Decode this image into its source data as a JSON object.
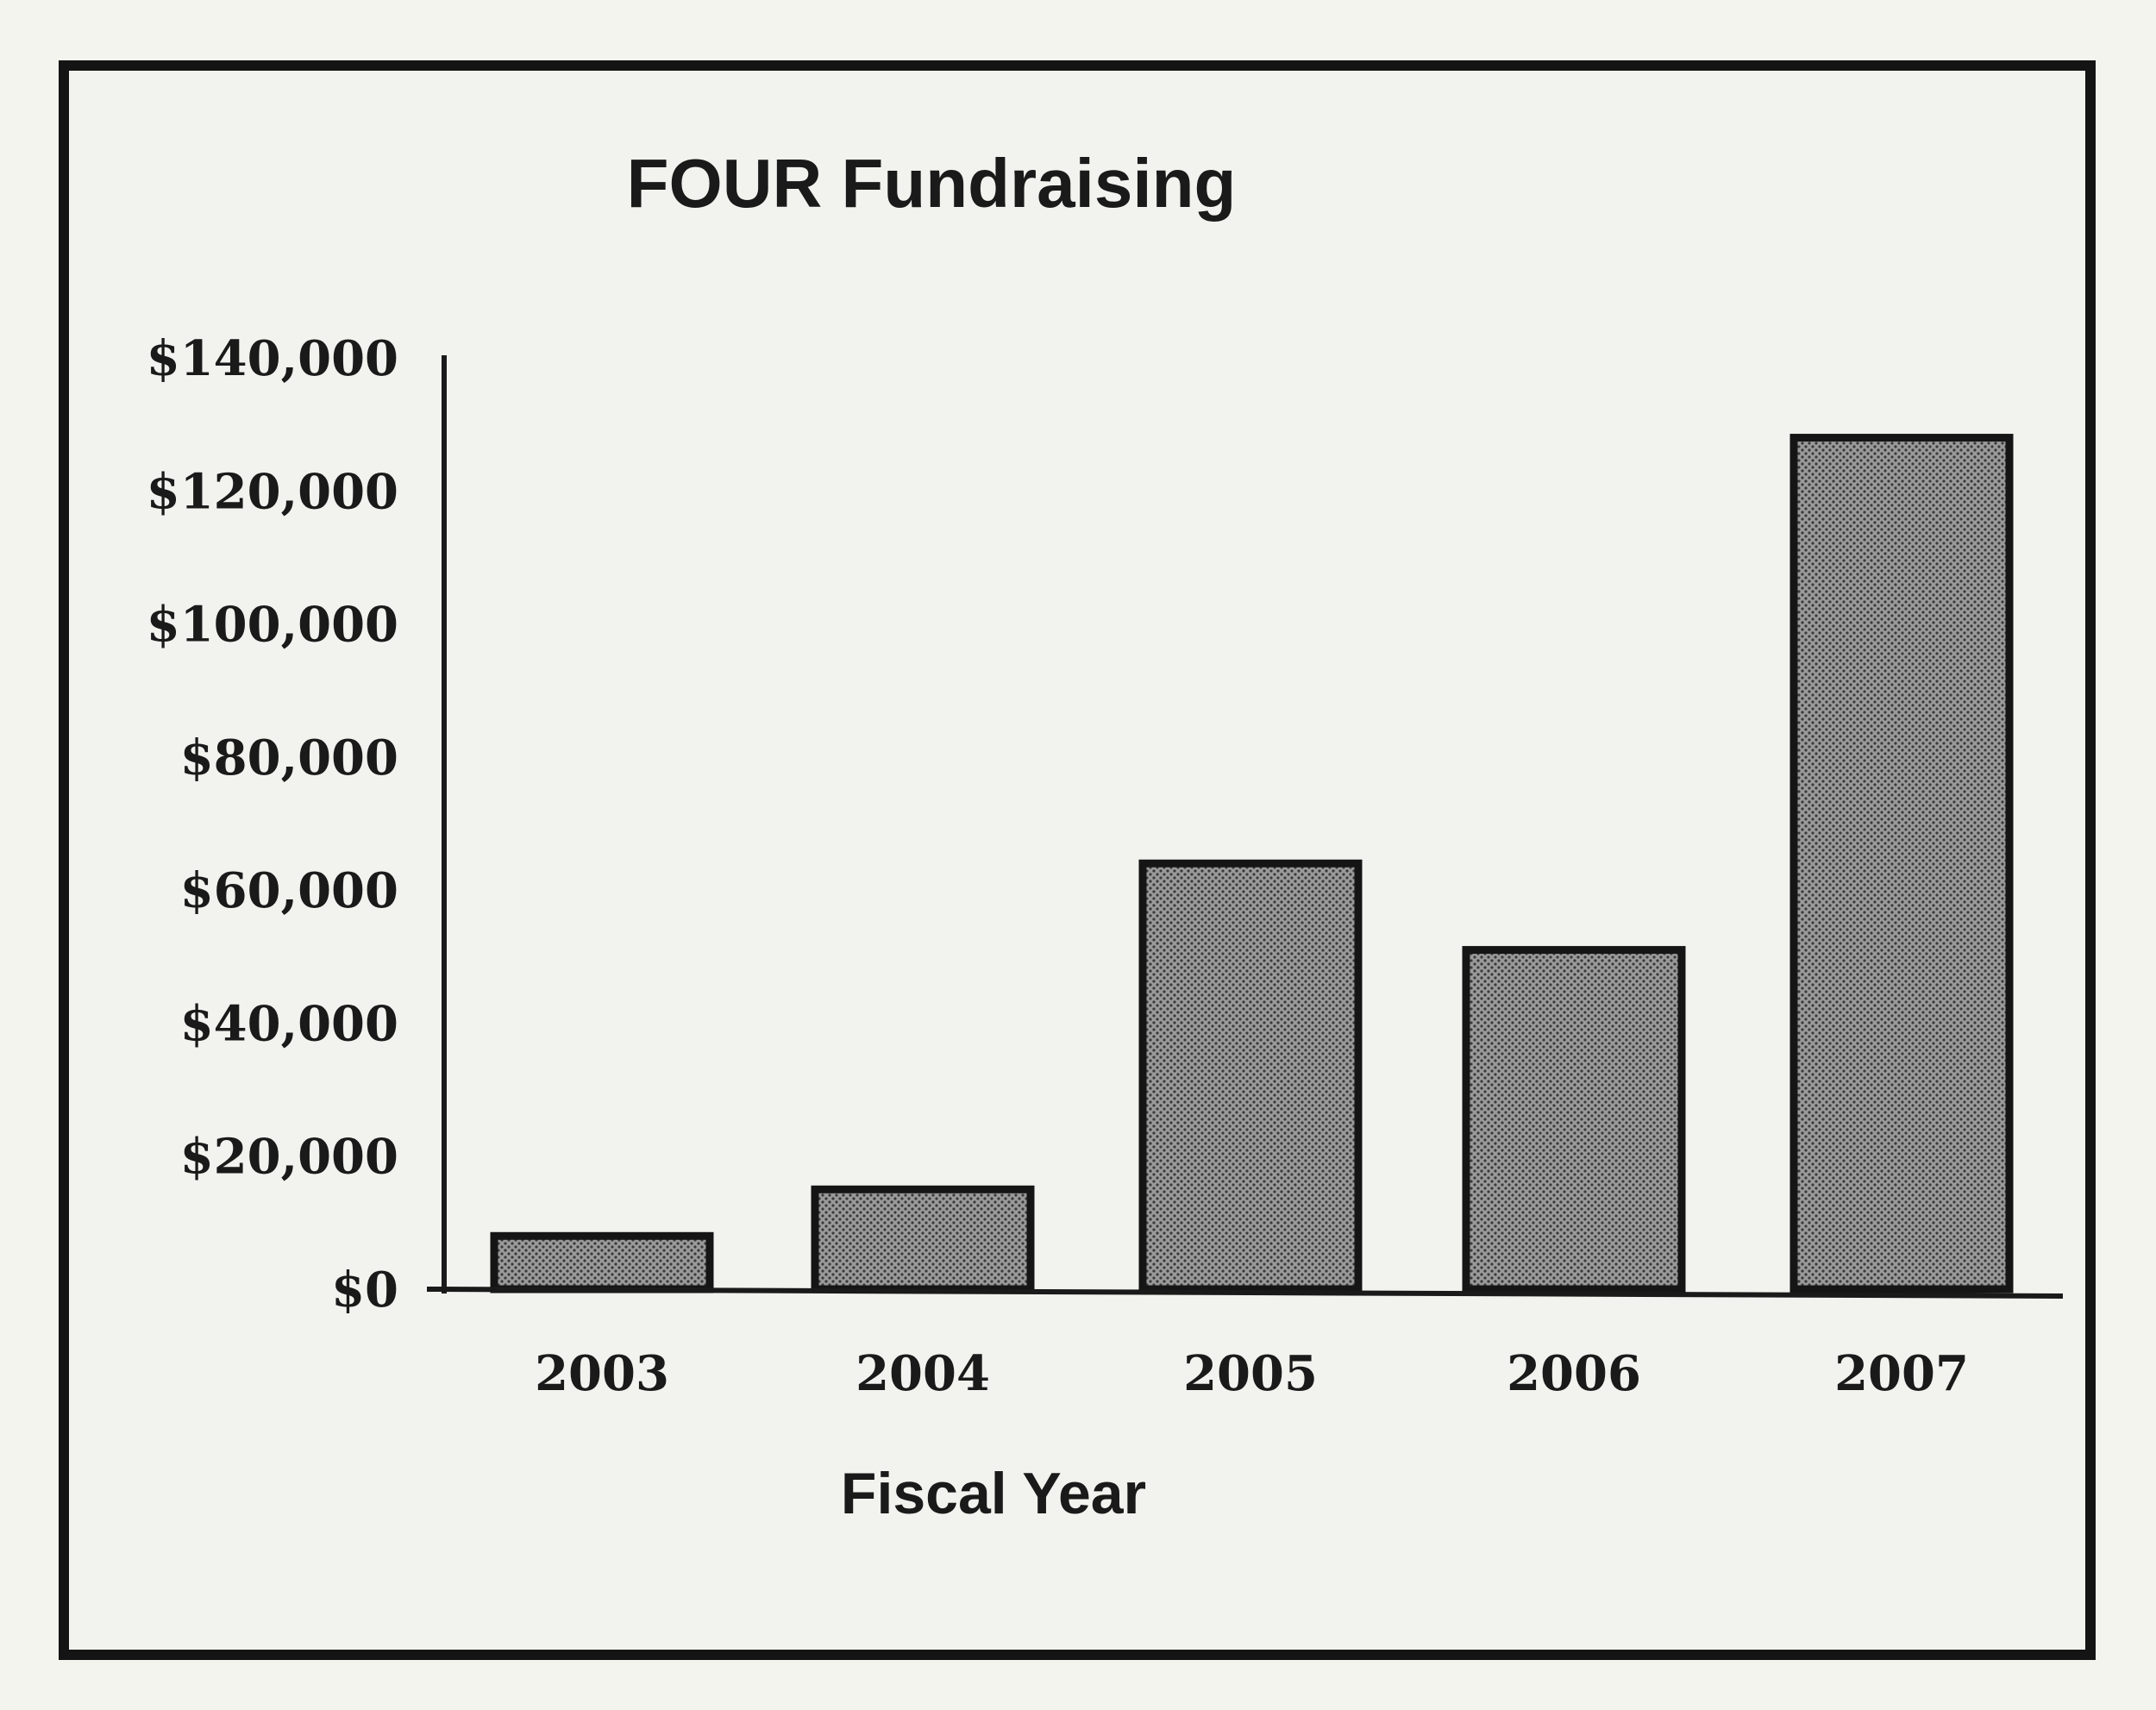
{
  "chart_data": {
    "type": "bar",
    "title": "FOUR Fundraising",
    "xlabel": "Fiscal Year",
    "ylabel": "",
    "categories": [
      "2003",
      "2004",
      "2005",
      "2006",
      "2007"
    ],
    "values": [
      8000,
      15000,
      64000,
      51000,
      128000
    ],
    "ylim": [
      0,
      140000
    ],
    "yticks": [
      0,
      20000,
      40000,
      60000,
      80000,
      100000,
      120000,
      140000
    ],
    "ytick_labels": [
      "$0",
      "$20,000",
      "$40,000",
      "$60,000",
      "$80,000",
      "$100,000",
      "$120,000",
      "$140,000"
    ],
    "grid": false,
    "legend": "none",
    "colors": {
      "bar_fill": "#8a8a8a",
      "bar_stroke": "#151515",
      "background": "#f2f2ee"
    }
  }
}
